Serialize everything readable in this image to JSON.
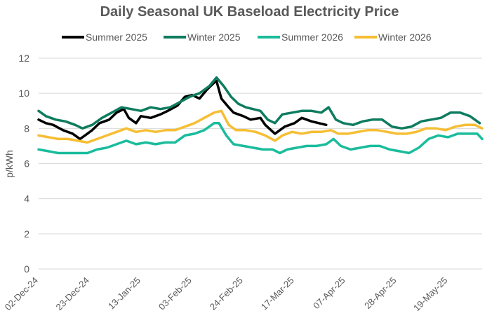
{
  "chart_data": {
    "type": "line",
    "title": "Daily Seasonal UK Baseload Electricity Price",
    "xlabel": "",
    "ylabel": "p/kWh",
    "ylim": [
      0,
      12
    ],
    "yticks": [
      "0",
      "2",
      "4",
      "6",
      "8",
      "10",
      "12"
    ],
    "grid": "horizontal",
    "legend_position": "top",
    "x_start": "02-Dec-24",
    "x_end": "02-Jun-25",
    "xticks": [
      "02-Dec-24",
      "23-Dec-24",
      "13-Jan-25",
      "03-Feb-25",
      "24-Feb-25",
      "17-Mar-25",
      "07-Apr-25",
      "28-Apr-25",
      "19-May-25"
    ],
    "series": [
      {
        "name": "Summer 2025",
        "color": "#000000",
        "points": [
          [
            "02-Dec-24",
            8.5
          ],
          [
            "05-Dec-24",
            8.3
          ],
          [
            "08-Dec-24",
            8.2
          ],
          [
            "12-Dec-24",
            7.9
          ],
          [
            "16-Dec-24",
            7.7
          ],
          [
            "19-Dec-24",
            7.4
          ],
          [
            "21-Dec-24",
            7.6
          ],
          [
            "24-Dec-24",
            7.9
          ],
          [
            "27-Dec-24",
            8.3
          ],
          [
            "31-Dec-24",
            8.5
          ],
          [
            "03-Jan-25",
            8.9
          ],
          [
            "06-Jan-25",
            9.1
          ],
          [
            "08-Jan-25",
            8.6
          ],
          [
            "11-Jan-25",
            8.3
          ],
          [
            "13-Jan-25",
            8.7
          ],
          [
            "17-Jan-25",
            8.6
          ],
          [
            "21-Jan-25",
            8.8
          ],
          [
            "24-Jan-25",
            9.0
          ],
          [
            "28-Jan-25",
            9.3
          ],
          [
            "31-Jan-25",
            9.8
          ],
          [
            "03-Feb-25",
            9.9
          ],
          [
            "06-Feb-25",
            9.7
          ],
          [
            "09-Feb-25",
            10.2
          ],
          [
            "12-Feb-25",
            10.6
          ],
          [
            "13-Feb-25",
            10.7
          ],
          [
            "15-Feb-25",
            9.7
          ],
          [
            "18-Feb-25",
            9.2
          ],
          [
            "20-Feb-25",
            8.9
          ],
          [
            "24-Feb-25",
            8.7
          ],
          [
            "27-Feb-25",
            8.5
          ],
          [
            "03-Mar-25",
            8.6
          ],
          [
            "05-Mar-25",
            8.2
          ],
          [
            "09-Mar-25",
            7.7
          ],
          [
            "13-Mar-25",
            8.1
          ],
          [
            "17-Mar-25",
            8.3
          ],
          [
            "20-Mar-25",
            8.6
          ],
          [
            "24-Mar-25",
            8.4
          ],
          [
            "27-Mar-25",
            8.3
          ],
          [
            "30-Mar-25",
            8.2
          ]
        ]
      },
      {
        "name": "Winter 2025",
        "color": "#0E7C5F",
        "points": [
          [
            "02-Dec-24",
            9.0
          ],
          [
            "05-Dec-24",
            8.7
          ],
          [
            "09-Dec-24",
            8.5
          ],
          [
            "13-Dec-24",
            8.4
          ],
          [
            "17-Dec-24",
            8.2
          ],
          [
            "20-Dec-24",
            8.0
          ],
          [
            "24-Dec-24",
            8.2
          ],
          [
            "28-Dec-24",
            8.6
          ],
          [
            "01-Jan-25",
            8.9
          ],
          [
            "05-Jan-25",
            9.2
          ],
          [
            "09-Jan-25",
            9.1
          ],
          [
            "13-Jan-25",
            9.0
          ],
          [
            "17-Jan-25",
            9.2
          ],
          [
            "21-Jan-25",
            9.1
          ],
          [
            "25-Jan-25",
            9.2
          ],
          [
            "29-Jan-25",
            9.5
          ],
          [
            "02-Feb-25",
            9.8
          ],
          [
            "06-Feb-25",
            10.0
          ],
          [
            "10-Feb-25",
            10.4
          ],
          [
            "13-Feb-25",
            10.9
          ],
          [
            "16-Feb-25",
            10.4
          ],
          [
            "19-Feb-25",
            9.8
          ],
          [
            "22-Feb-25",
            9.4
          ],
          [
            "25-Feb-25",
            9.2
          ],
          [
            "28-Feb-25",
            9.1
          ],
          [
            "03-Mar-25",
            9.0
          ],
          [
            "06-Mar-25",
            8.5
          ],
          [
            "09-Mar-25",
            8.3
          ],
          [
            "12-Mar-25",
            8.8
          ],
          [
            "16-Mar-25",
            8.9
          ],
          [
            "20-Mar-25",
            9.0
          ],
          [
            "24-Mar-25",
            9.0
          ],
          [
            "28-Mar-25",
            8.9
          ],
          [
            "31-Mar-25",
            9.2
          ],
          [
            "03-Apr-25",
            8.5
          ],
          [
            "06-Apr-25",
            8.3
          ],
          [
            "10-Apr-25",
            8.2
          ],
          [
            "14-Apr-25",
            8.4
          ],
          [
            "18-Apr-25",
            8.5
          ],
          [
            "22-Apr-25",
            8.5
          ],
          [
            "26-Apr-25",
            8.1
          ],
          [
            "30-Apr-25",
            8.0
          ],
          [
            "04-May-25",
            8.1
          ],
          [
            "08-May-25",
            8.4
          ],
          [
            "12-May-25",
            8.5
          ],
          [
            "16-May-25",
            8.6
          ],
          [
            "20-May-25",
            8.9
          ],
          [
            "24-May-25",
            8.9
          ],
          [
            "28-May-25",
            8.7
          ],
          [
            "01-Jun-25",
            8.3
          ]
        ]
      },
      {
        "name": "Summer 2026",
        "color": "#1ABC9C",
        "points": [
          [
            "02-Dec-24",
            6.8
          ],
          [
            "06-Dec-24",
            6.7
          ],
          [
            "10-Dec-24",
            6.6
          ],
          [
            "14-Dec-24",
            6.6
          ],
          [
            "18-Dec-24",
            6.6
          ],
          [
            "22-Dec-24",
            6.6
          ],
          [
            "26-Dec-24",
            6.8
          ],
          [
            "30-Dec-24",
            6.9
          ],
          [
            "03-Jan-25",
            7.1
          ],
          [
            "07-Jan-25",
            7.3
          ],
          [
            "11-Jan-25",
            7.1
          ],
          [
            "15-Jan-25",
            7.2
          ],
          [
            "19-Jan-25",
            7.1
          ],
          [
            "23-Jan-25",
            7.2
          ],
          [
            "27-Jan-25",
            7.2
          ],
          [
            "31-Jan-25",
            7.6
          ],
          [
            "04-Feb-25",
            7.7
          ],
          [
            "08-Feb-25",
            7.9
          ],
          [
            "12-Feb-25",
            8.3
          ],
          [
            "14-Feb-25",
            8.3
          ],
          [
            "17-Feb-25",
            7.6
          ],
          [
            "20-Feb-25",
            7.1
          ],
          [
            "24-Feb-25",
            7.0
          ],
          [
            "28-Feb-25",
            6.9
          ],
          [
            "04-Mar-25",
            6.8
          ],
          [
            "08-Mar-25",
            6.8
          ],
          [
            "11-Mar-25",
            6.6
          ],
          [
            "14-Mar-25",
            6.8
          ],
          [
            "18-Mar-25",
            6.9
          ],
          [
            "22-Mar-25",
            7.0
          ],
          [
            "26-Mar-25",
            7.0
          ],
          [
            "30-Mar-25",
            7.1
          ],
          [
            "02-Apr-25",
            7.4
          ],
          [
            "05-Apr-25",
            7.0
          ],
          [
            "09-Apr-25",
            6.8
          ],
          [
            "13-Apr-25",
            6.9
          ],
          [
            "17-Apr-25",
            7.0
          ],
          [
            "21-Apr-25",
            7.0
          ],
          [
            "25-Apr-25",
            6.8
          ],
          [
            "29-Apr-25",
            6.7
          ],
          [
            "03-May-25",
            6.6
          ],
          [
            "07-May-25",
            6.9
          ],
          [
            "11-May-25",
            7.4
          ],
          [
            "15-May-25",
            7.6
          ],
          [
            "19-May-25",
            7.5
          ],
          [
            "23-May-25",
            7.7
          ],
          [
            "27-May-25",
            7.7
          ],
          [
            "31-May-25",
            7.7
          ],
          [
            "02-Jun-25",
            7.4
          ]
        ]
      },
      {
        "name": "Winter 2026",
        "color": "#F6BE34",
        "points": [
          [
            "02-Dec-24",
            7.6
          ],
          [
            "06-Dec-24",
            7.5
          ],
          [
            "10-Dec-24",
            7.4
          ],
          [
            "14-Dec-24",
            7.4
          ],
          [
            "18-Dec-24",
            7.3
          ],
          [
            "22-Dec-24",
            7.2
          ],
          [
            "26-Dec-24",
            7.4
          ],
          [
            "30-Dec-24",
            7.6
          ],
          [
            "03-Jan-25",
            7.8
          ],
          [
            "07-Jan-25",
            8.0
          ],
          [
            "11-Jan-25",
            7.8
          ],
          [
            "15-Jan-25",
            7.9
          ],
          [
            "19-Jan-25",
            7.8
          ],
          [
            "23-Jan-25",
            7.9
          ],
          [
            "27-Jan-25",
            7.9
          ],
          [
            "31-Jan-25",
            8.1
          ],
          [
            "04-Feb-25",
            8.3
          ],
          [
            "08-Feb-25",
            8.6
          ],
          [
            "12-Feb-25",
            8.9
          ],
          [
            "15-Feb-25",
            9.0
          ],
          [
            "18-Feb-25",
            8.2
          ],
          [
            "21-Feb-25",
            7.9
          ],
          [
            "25-Feb-25",
            7.9
          ],
          [
            "01-Mar-25",
            7.8
          ],
          [
            "05-Mar-25",
            7.6
          ],
          [
            "09-Mar-25",
            7.3
          ],
          [
            "12-Mar-25",
            7.6
          ],
          [
            "16-Mar-25",
            7.8
          ],
          [
            "20-Mar-25",
            7.7
          ],
          [
            "24-Mar-25",
            7.8
          ],
          [
            "28-Mar-25",
            7.8
          ],
          [
            "01-Apr-25",
            7.9
          ],
          [
            "04-Apr-25",
            7.7
          ],
          [
            "08-Apr-25",
            7.7
          ],
          [
            "12-Apr-25",
            7.8
          ],
          [
            "16-Apr-25",
            7.9
          ],
          [
            "20-Apr-25",
            7.9
          ],
          [
            "24-Apr-25",
            7.8
          ],
          [
            "28-Apr-25",
            7.7
          ],
          [
            "02-May-25",
            7.7
          ],
          [
            "06-May-25",
            7.8
          ],
          [
            "10-May-25",
            8.0
          ],
          [
            "14-May-25",
            8.0
          ],
          [
            "18-May-25",
            7.9
          ],
          [
            "22-May-25",
            8.1
          ],
          [
            "26-May-25",
            8.2
          ],
          [
            "30-May-25",
            8.2
          ],
          [
            "02-Jun-25",
            8.0
          ]
        ]
      }
    ]
  }
}
